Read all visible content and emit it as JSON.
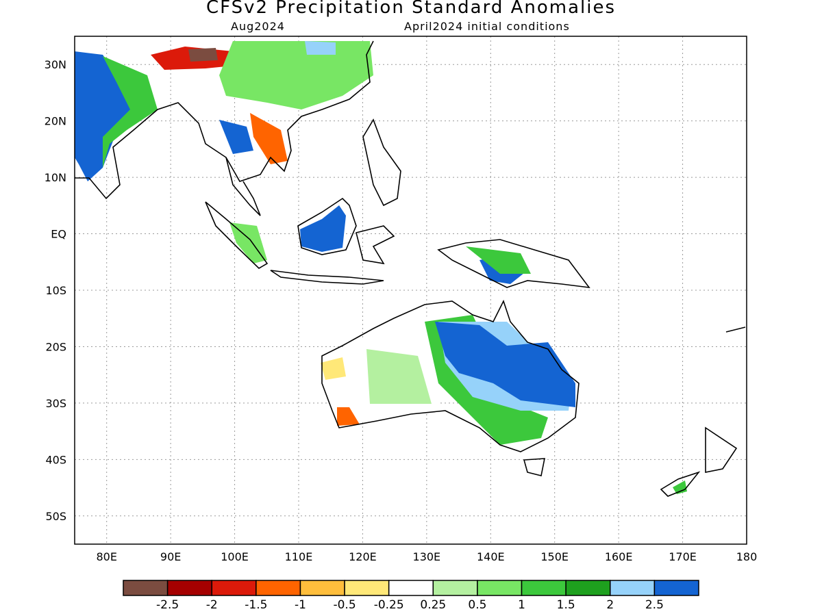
{
  "title": "CFSv2 Precipitation Standard Anomalies",
  "subtitle_left": "Aug2024",
  "subtitle_right": "April2024 initial conditions",
  "axes": {
    "x_ticks": [
      "80E",
      "90E",
      "100E",
      "110E",
      "120E",
      "130E",
      "140E",
      "150E",
      "160E",
      "170E",
      "180"
    ],
    "y_ticks": [
      "30N",
      "20N",
      "10N",
      "EQ",
      "10S",
      "20S",
      "30S",
      "40S",
      "50S"
    ],
    "lon_range": [
      75,
      180
    ],
    "lat_range": [
      -55,
      35
    ]
  },
  "legend": {
    "labels": [
      "-2.5",
      "-2",
      "-1.5",
      "-1",
      "-0.5",
      "-0.25",
      "0.25",
      "0.5",
      "1",
      "1.5",
      "2",
      "2.5"
    ],
    "colors": [
      "#7b4c40",
      "#a50000",
      "#dc1a0a",
      "#ff6400",
      "#ffbe3c",
      "#ffe878",
      "#ffffff",
      "#b4f0a0",
      "#78e664",
      "#3cc83c",
      "#1ea01e",
      "#96d2fa",
      "#1464d2"
    ]
  },
  "grid": "dotted"
}
